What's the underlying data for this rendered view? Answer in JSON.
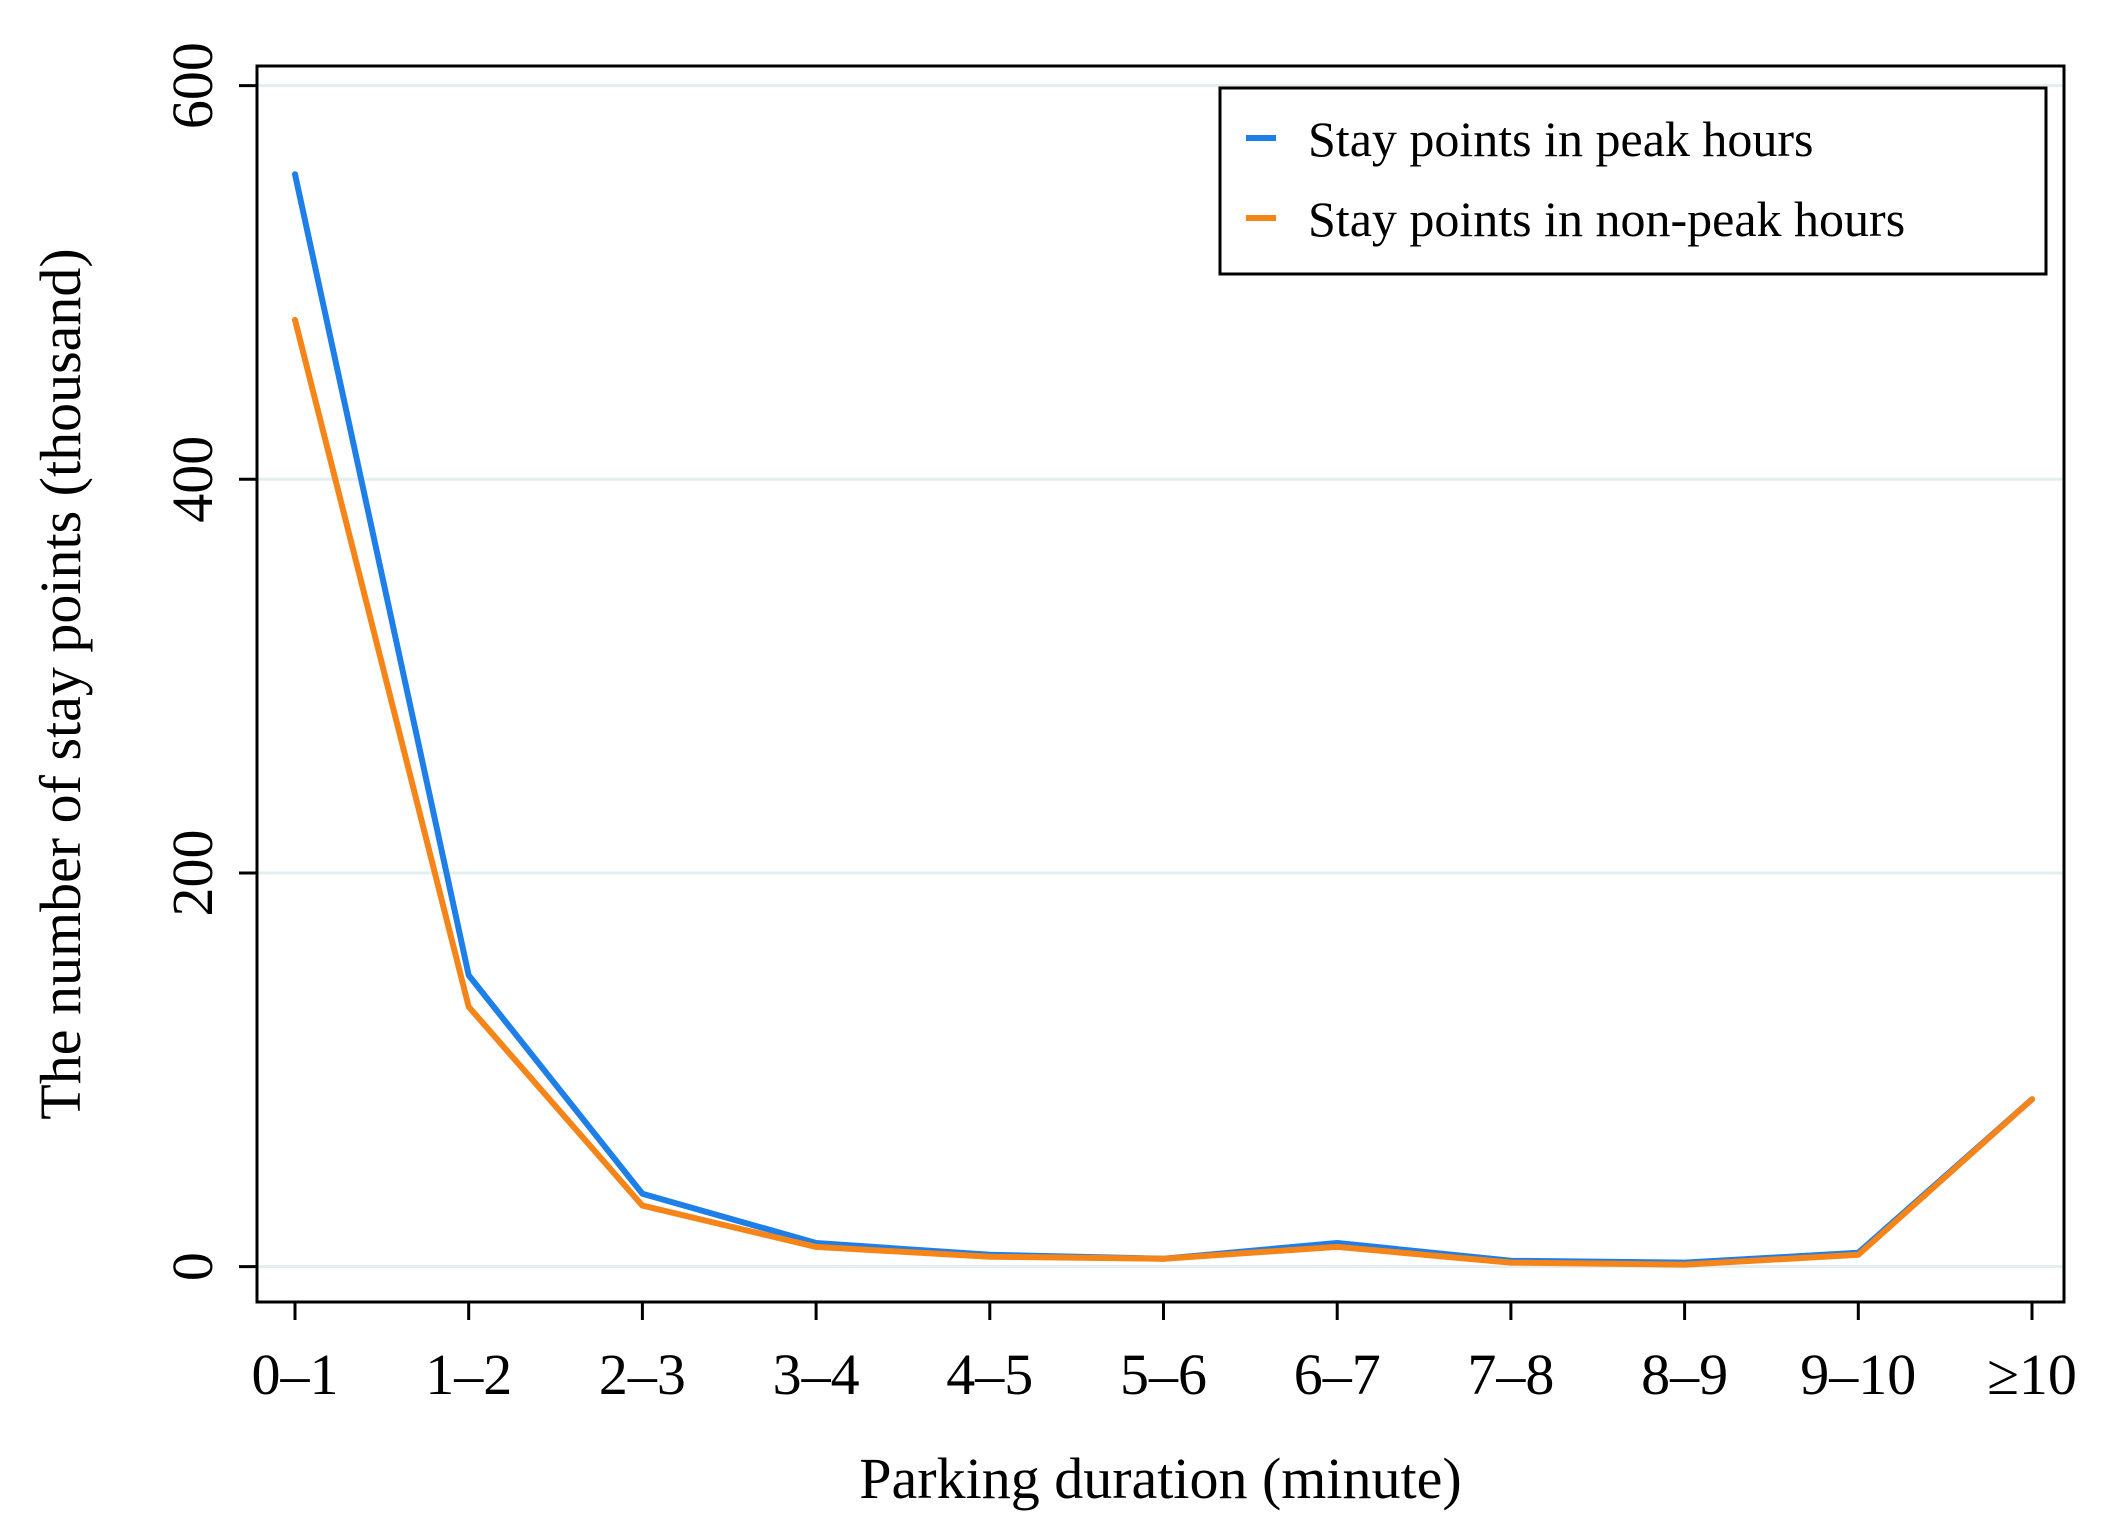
{
  "chart_data": {
    "type": "line",
    "title": "",
    "xlabel": "Parking duration (minute)",
    "ylabel": "The number of stay points (thousand)",
    "categories": [
      "0–1",
      "1–2",
      "2–3",
      "3–4",
      "4–5",
      "5–6",
      "6–7",
      "7–8",
      "8–9",
      "9–10",
      "≥10"
    ],
    "ylim": [
      -18,
      610
    ],
    "yticks": [
      0,
      200,
      400,
      600
    ],
    "grid": "horizontal",
    "legend_position": "top-right",
    "series": [
      {
        "name": "Stay points in peak hours",
        "color": "#1f7fe8",
        "values": [
          555,
          148,
          37,
          12,
          6,
          4,
          12,
          3,
          2,
          7,
          85
        ]
      },
      {
        "name": "Stay points in non-peak hours",
        "color": "#f58518",
        "values": [
          481,
          132,
          31,
          10,
          5,
          4,
          10,
          2,
          1,
          6,
          85
        ]
      }
    ]
  }
}
